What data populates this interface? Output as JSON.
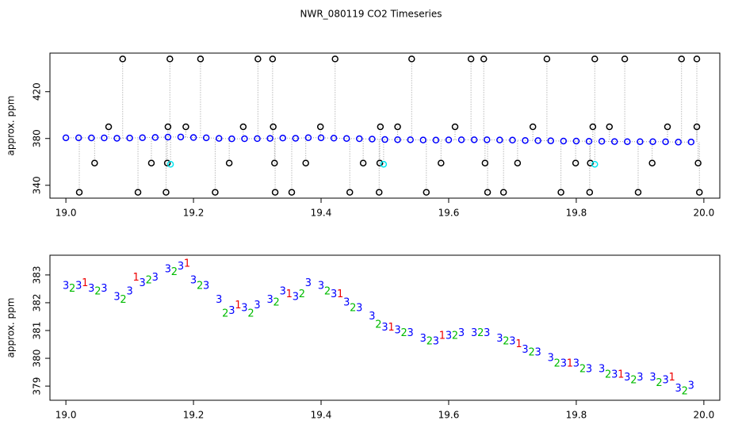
{
  "chart_data": [
    {
      "type": "scatter",
      "title": "NWR_080119  CO2 Timeseries",
      "y_label": "approx. ppm",
      "xlim": [
        18.975,
        20.025
      ],
      "ylim": [
        329,
        453
      ],
      "xticks": [
        {
          "value": 19,
          "label": "19.0"
        },
        19.2,
        19.4,
        19.6,
        19.8,
        {
          "value": 20,
          "label": "20.0"
        }
      ],
      "yticks": [
        340,
        380,
        420
      ],
      "series": [
        {
          "color": "#0000ff",
          "line": true,
          "x": [
            19.0,
            19.02,
            19.04,
            19.06,
            19.08,
            19.1,
            19.12,
            19.14,
            19.16,
            19.18,
            19.2,
            19.22,
            19.24,
            19.26,
            19.28,
            19.3,
            19.32,
            19.34,
            19.36,
            19.38,
            19.4,
            19.42,
            19.44,
            19.46,
            19.48,
            19.5,
            19.52,
            19.54,
            19.56,
            19.58,
            19.6,
            19.62,
            19.64,
            19.66,
            19.68,
            19.7,
            19.72,
            19.74,
            19.76,
            19.78,
            19.8,
            19.82,
            19.84,
            19.86,
            19.88,
            19.9,
            19.92,
            19.94,
            19.96,
            19.98
          ],
          "values": [
            380.6,
            380.6,
            380.5,
            380.5,
            380.2,
            380.4,
            380.7,
            380.9,
            381.2,
            381.3,
            380.8,
            380.6,
            380.1,
            379.7,
            379.8,
            379.9,
            380.1,
            380.4,
            380.2,
            380.7,
            380.6,
            380.3,
            380.0,
            379.8,
            379.5,
            379.1,
            379.0,
            378.9,
            378.7,
            378.6,
            378.8,
            378.9,
            378.9,
            378.9,
            378.7,
            378.6,
            378.3,
            378.2,
            378.0,
            377.8,
            377.8,
            377.6,
            377.6,
            377.4,
            377.3,
            377.3,
            377.3,
            377.2,
            376.9,
            377.0
          ]
        },
        {
          "color": "#000000",
          "line": false,
          "x": [
            19.089,
            19.163,
            19.211,
            19.301,
            19.324,
            19.422,
            19.542,
            19.635,
            19.655,
            19.754,
            19.829,
            19.876,
            19.965,
            19.989,
            19.067,
            19.16,
            19.188,
            19.278,
            19.325,
            19.399,
            19.493,
            19.52,
            19.61,
            19.732,
            19.826,
            19.852,
            19.943,
            19.989,
            19.045,
            19.134,
            19.159,
            19.256,
            19.327,
            19.376,
            19.466,
            19.492,
            19.588,
            19.657,
            19.708,
            19.799,
            19.822,
            19.919,
            19.991,
            19.021,
            19.113,
            19.157,
            19.234,
            19.328,
            19.354,
            19.445,
            19.491,
            19.565,
            19.661,
            19.686,
            19.776,
            19.821,
            19.897,
            19.993
          ],
          "values": [
            448,
            448,
            448,
            448,
            448,
            448,
            448,
            448,
            448,
            448,
            448,
            448,
            448,
            448,
            390,
            390,
            390,
            390,
            390,
            390,
            390,
            390,
            390,
            390,
            390,
            390,
            390,
            390,
            359,
            359,
            359,
            359,
            359,
            359,
            359,
            359,
            359,
            359,
            359,
            359,
            359,
            359,
            359,
            334,
            334,
            334,
            334,
            334,
            334,
            334,
            334,
            334,
            334,
            334,
            334,
            334,
            334,
            334
          ]
        },
        {
          "color": "#00e5ee",
          "line": false,
          "x": [
            19.164,
            19.498,
            19.829
          ],
          "values": [
            358,
            358,
            358
          ]
        }
      ]
    },
    {
      "type": "text-scatter",
      "y_label": "approx. ppm",
      "xlim": [
        18.975,
        20.025
      ],
      "ylim": [
        378.49,
        383.71
      ],
      "xticks": [
        {
          "value": 19,
          "label": "19.0"
        },
        19.2,
        19.4,
        19.6,
        19.8,
        {
          "value": 20,
          "label": "20.0"
        }
      ],
      "yticks": [
        379,
        380,
        381,
        382,
        383
      ],
      "series": [
        {
          "color": "#0000ff",
          "marker": "3",
          "x": [
            19.0,
            19.02,
            19.04,
            19.06,
            19.08,
            19.1,
            19.12,
            19.14,
            19.16,
            19.18,
            19.2,
            19.22,
            19.24,
            19.26,
            19.28,
            19.3,
            19.32,
            19.34,
            19.36,
            19.38,
            19.4,
            19.42,
            19.44,
            19.46,
            19.48,
            19.5,
            19.52,
            19.54,
            19.56,
            19.58,
            19.6,
            19.62,
            19.64,
            19.66,
            19.68,
            19.7,
            19.72,
            19.74,
            19.76,
            19.78,
            19.8,
            19.82,
            19.84,
            19.86,
            19.88,
            19.9,
            19.92,
            19.94,
            19.96,
            19.98
          ],
          "values": [
            382.6,
            382.6,
            382.5,
            382.5,
            382.2,
            382.4,
            382.7,
            382.9,
            383.2,
            383.3,
            382.8,
            382.6,
            382.1,
            381.7,
            381.8,
            381.9,
            382.1,
            382.4,
            382.2,
            382.7,
            382.6,
            382.3,
            382.0,
            381.8,
            381.5,
            381.1,
            381.0,
            380.9,
            380.7,
            380.6,
            380.8,
            380.9,
            380.9,
            380.9,
            380.7,
            380.6,
            380.3,
            380.2,
            380.0,
            379.8,
            379.8,
            379.6,
            379.6,
            379.4,
            379.3,
            379.3,
            379.3,
            379.2,
            378.9,
            379.0
          ]
        },
        {
          "color": "#00bb00",
          "marker": "2",
          "x": [
            19.01,
            19.05,
            19.09,
            19.13,
            19.17,
            19.21,
            19.25,
            19.29,
            19.33,
            19.37,
            19.41,
            19.45,
            19.49,
            19.53,
            19.57,
            19.61,
            19.65,
            19.69,
            19.73,
            19.77,
            19.81,
            19.85,
            19.89,
            19.93,
            19.97
          ],
          "values": [
            382.5,
            382.4,
            382.1,
            382.8,
            383.1,
            382.6,
            381.6,
            381.6,
            382.0,
            382.3,
            382.4,
            381.8,
            381.2,
            380.9,
            380.6,
            380.8,
            380.9,
            380.6,
            380.2,
            379.8,
            379.6,
            379.4,
            379.2,
            379.1,
            378.8
          ]
        },
        {
          "color": "#ee0000",
          "marker": "1",
          "x": [
            19.03,
            19.11,
            19.19,
            19.27,
            19.35,
            19.43,
            19.51,
            19.59,
            19.71,
            19.79,
            19.87,
            19.95
          ],
          "values": [
            382.7,
            382.9,
            383.4,
            381.9,
            382.3,
            382.3,
            381.1,
            380.8,
            380.5,
            379.8,
            379.4,
            379.3
          ]
        }
      ]
    }
  ]
}
